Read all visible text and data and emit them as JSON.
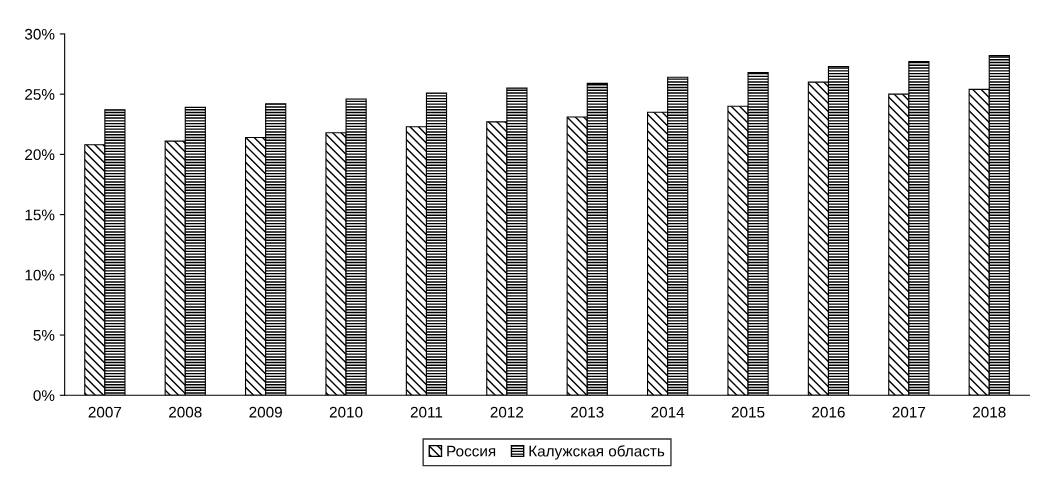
{
  "chart_data": {
    "type": "bar",
    "categories": [
      "2007",
      "2008",
      "2009",
      "2010",
      "2011",
      "2012",
      "2013",
      "2014",
      "2015",
      "2016",
      "2017",
      "2018"
    ],
    "series": [
      {
        "name": "Россия",
        "color": "#000000",
        "values": [
          20.8,
          21.1,
          21.4,
          21.8,
          22.3,
          22.7,
          23.1,
          23.5,
          24.0,
          26.0,
          25.0,
          25.4
        ]
      },
      {
        "name": "Калужская область",
        "color": "#000000",
        "values": [
          23.7,
          23.9,
          24.2,
          24.6,
          25.1,
          25.5,
          25.9,
          26.4,
          26.8,
          27.3,
          27.7,
          28.2
        ]
      }
    ],
    "ylim": [
      0,
      30
    ],
    "yticks": [
      {
        "value": 0,
        "label": "0%"
      },
      {
        "value": 5,
        "label": "5%"
      },
      {
        "value": 10,
        "label": "10%"
      },
      {
        "value": 15,
        "label": "15%"
      },
      {
        "value": 20,
        "label": "20%"
      },
      {
        "value": 25,
        "label": "25%"
      },
      {
        "value": 30,
        "label": "30%"
      }
    ],
    "grid": false,
    "legend": "bottom"
  }
}
